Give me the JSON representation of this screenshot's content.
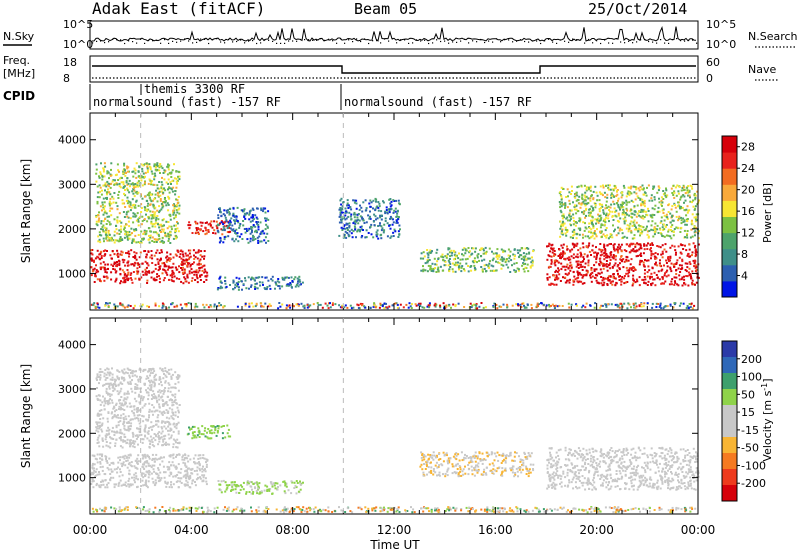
{
  "header": {
    "title": "Adak East (fitACF)",
    "beam": "Beam 05",
    "date": "25/Oct/2014"
  },
  "status_panels": {
    "nsky_label": "N.Sky",
    "nsearch_label": "N.Search",
    "freq_label_line1": "Freq.",
    "freq_label_line2": "[MHz]",
    "nave_label": "Nave",
    "cpid_label": "CPID",
    "noise_axis_left": [
      "10^5",
      "10^0"
    ],
    "noise_axis_right": [
      "10^5",
      "10^0"
    ],
    "freq_axis_left": [
      "18",
      "8"
    ],
    "freq_axis_right": [
      "60",
      "0"
    ],
    "cpid_segments": [
      {
        "label": "normalsound (fast) -157 RF",
        "start_hour": 0,
        "end_hour": 10
      },
      {
        "label": "normalsound (fast) -157 RF",
        "start_hour": 10,
        "end_hour": 24
      }
    ],
    "cpid_marker": {
      "label": "themis 3300 RF",
      "hour": 2
    }
  },
  "chart_data": [
    {
      "type": "heatmap",
      "title": "Power",
      "xlabel": "Time UT",
      "ylabel": "Slant Range [km]",
      "x_ticks": [
        "00:00",
        "04:00",
        "08:00",
        "12:00",
        "16:00",
        "20:00",
        "00:00"
      ],
      "xlim_hours": [
        0,
        24
      ],
      "y_ticks": [
        1000,
        2000,
        3000,
        4000
      ],
      "ylim": [
        180,
        4600
      ],
      "colorbar": {
        "label": "Power [dB]",
        "ticks": [
          4,
          8,
          12,
          16,
          20,
          24,
          28
        ],
        "range": [
          0,
          30
        ],
        "colors": [
          "#0015e6",
          "#2c5fb0",
          "#3f8f89",
          "#4da36b",
          "#7cc142",
          "#f7e633",
          "#f9a93a",
          "#f36c21",
          "#e8221c",
          "#d6000a"
        ]
      },
      "features": [
        {
          "name": "early-ionospheric",
          "t": [
            0.0,
            4.6
          ],
          "r": [
            800,
            1550
          ],
          "value": 28
        },
        {
          "name": "early-upper",
          "t": [
            0.2,
            3.5
          ],
          "r": [
            1700,
            3500
          ],
          "value": 14
        },
        {
          "name": "hook-0430",
          "t": [
            3.8,
            5.5
          ],
          "r": [
            1900,
            2200
          ],
          "value": 26
        },
        {
          "name": "mid-blue-0500",
          "t": [
            5.0,
            7.0
          ],
          "r": [
            1700,
            2500
          ],
          "value": 6
        },
        {
          "name": "mid-blue-0600",
          "t": [
            5.0,
            8.4
          ],
          "r": [
            650,
            950
          ],
          "value": 6
        },
        {
          "name": "scatter-1000",
          "t": [
            9.8,
            12.2
          ],
          "r": [
            1800,
            2700
          ],
          "value": 6
        },
        {
          "name": "center-echo",
          "t": [
            13.0,
            17.5
          ],
          "r": [
            1050,
            1600
          ],
          "value": 12
        },
        {
          "name": "late-ionospheric",
          "t": [
            18.0,
            24.0
          ],
          "r": [
            750,
            1700
          ],
          "value": 28
        },
        {
          "name": "late-upper",
          "t": [
            18.5,
            24.0
          ],
          "r": [
            1800,
            3000
          ],
          "value": 14
        }
      ]
    },
    {
      "type": "heatmap",
      "title": "Velocity",
      "xlabel": "Time UT",
      "ylabel": "Slant Range [km]",
      "x_ticks": [
        "00:00",
        "04:00",
        "08:00",
        "12:00",
        "16:00",
        "20:00",
        "00:00"
      ],
      "xlim_hours": [
        0,
        24
      ],
      "y_ticks": [
        1000,
        2000,
        3000,
        4000
      ],
      "ylim": [
        180,
        4600
      ],
      "colorbar": {
        "label": "Velocity [m s^-1]",
        "ticks": [
          200,
          100,
          50,
          15,
          -15,
          -50,
          -100,
          -200
        ],
        "range": [
          -250,
          250
        ],
        "colors": [
          "#2b3aa8",
          "#2f68b8",
          "#3ea06d",
          "#8fd34a",
          "#c8c8c8",
          "#c8c8c8",
          "#f8b534",
          "#f57a21",
          "#ee3a1d",
          "#d6000a"
        ]
      },
      "features": [
        {
          "name": "early-ground",
          "t": [
            0.0,
            4.6
          ],
          "r": [
            800,
            1550
          ],
          "value": 0
        },
        {
          "name": "early-upper",
          "t": [
            0.2,
            3.5
          ],
          "r": [
            1700,
            3500
          ],
          "value": 0
        },
        {
          "name": "hook-0430",
          "t": [
            3.8,
            5.5
          ],
          "r": [
            1900,
            2200
          ],
          "value": 80
        },
        {
          "name": "green-0600",
          "t": [
            5.0,
            8.4
          ],
          "r": [
            650,
            950
          ],
          "value": 60
        },
        {
          "name": "center-orange",
          "t": [
            13.0,
            17.5
          ],
          "r": [
            1050,
            1600
          ],
          "value": -40
        },
        {
          "name": "late-ground",
          "t": [
            18.0,
            24.0
          ],
          "r": [
            750,
            1700
          ],
          "value": 0
        }
      ]
    }
  ]
}
